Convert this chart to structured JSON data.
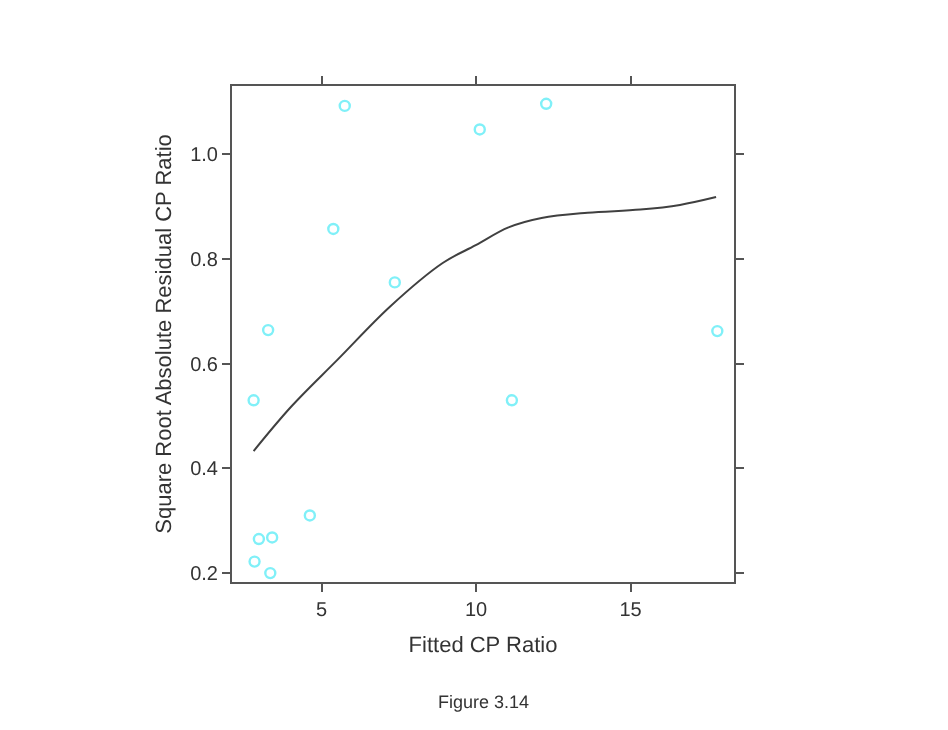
{
  "chart_data": {
    "type": "scatter",
    "xlabel": "Fitted CP Ratio",
    "ylabel": "Square Root Absolute Residual CP Ratio",
    "annotations": [
      "Figure 3.14"
    ],
    "xlim": [
      2.1,
      18.35
    ],
    "ylim": [
      0.183,
      1.13
    ],
    "xticks": [
      5,
      10,
      15
    ],
    "yticks": [
      0.2,
      0.4,
      0.6,
      0.8,
      {
        "value": 1.0,
        "label": "1.0"
      }
    ],
    "series": [
      {
        "marker": "circle",
        "color": "#80f0f8",
        "x": [
          2.8,
          3.27,
          2.97,
          2.83,
          3.4,
          3.34,
          4.62,
          5.38,
          5.75,
          7.37,
          10.12,
          11.16,
          12.27,
          17.81
        ],
        "values": [
          0.53,
          0.664,
          0.265,
          0.222,
          0.268,
          0.2,
          0.31,
          0.857,
          1.092,
          0.755,
          1.047,
          0.53,
          1.096,
          0.662
        ]
      },
      {
        "type": "line",
        "color": "#404040",
        "line_style": "solid",
        "x": [
          2.8,
          4.02,
          5.51,
          7.22,
          8.92,
          9.99,
          11.05,
          12.12,
          13.61,
          15.32,
          16.6,
          17.77
        ],
        "values": [
          0.433,
          0.518,
          0.607,
          0.709,
          0.792,
          0.826,
          0.86,
          0.878,
          0.888,
          0.894,
          0.903,
          0.918
        ]
      }
    ]
  }
}
